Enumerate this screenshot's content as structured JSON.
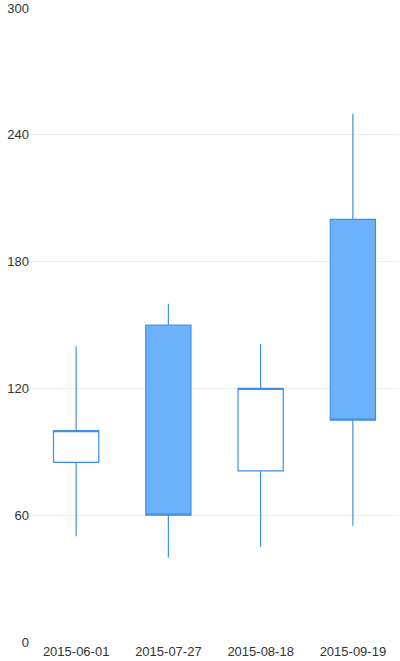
{
  "chart_data": {
    "type": "candlestick",
    "categories": [
      "2015-06-01",
      "2015-07-27",
      "2015-08-18",
      "2015-09-19"
    ],
    "open": [
      85,
      150,
      81,
      200
    ],
    "high": [
      140,
      160,
      141,
      250
    ],
    "low": [
      50,
      40,
      45,
      55
    ],
    "close": [
      100,
      60,
      120,
      105
    ],
    "color": "#6cb2fa",
    "ylim": [
      0,
      300
    ],
    "yticks": [
      0,
      60,
      120,
      180,
      240,
      300
    ],
    "grid": true
  }
}
